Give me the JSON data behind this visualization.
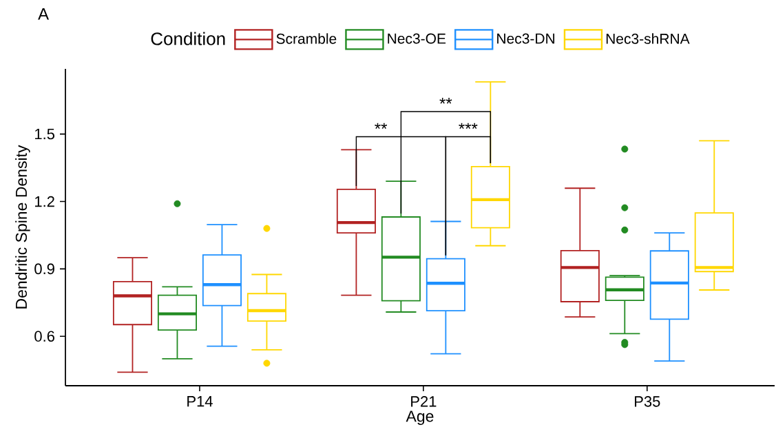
{
  "chart_data": {
    "type": "box",
    "xlabel": "Age",
    "ylabel": "Dendritic Spine Density",
    "legend_title": "Condition",
    "legend": "top",
    "categories": [
      "P14",
      "P21",
      "P35"
    ],
    "ylim": [
      0.38,
      1.79
    ],
    "yticks": [
      0.6,
      0.9,
      1.2,
      1.5
    ],
    "annotations": [
      "A",
      "**",
      "**",
      "***"
    ],
    "series": [
      {
        "name": "Scramble",
        "color": "#b22222",
        "boxes": [
          {
            "low": 0.44,
            "q1": 0.652,
            "median": 0.78,
            "q3": 0.843,
            "high": 0.95
          },
          {
            "low": 0.783,
            "q1": 1.06,
            "median": 1.106,
            "q3": 1.254,
            "high": 1.43
          },
          {
            "low": 0.686,
            "q1": 0.754,
            "median": 0.906,
            "q3": 0.981,
            "high": 1.259
          }
        ]
      },
      {
        "name": "Nec3-OE",
        "color": "#228b22",
        "boxes": [
          {
            "low": 0.5,
            "q1": 0.628,
            "median": 0.7,
            "q3": 0.783,
            "high": 0.82,
            "outliers": [
              1.19
            ]
          },
          {
            "low": 0.708,
            "q1": 0.758,
            "median": 0.952,
            "q3": 1.131,
            "high": 1.29
          },
          {
            "low": 0.612,
            "q1": 0.76,
            "median": 0.807,
            "q3": 0.863,
            "high": 0.87,
            "outliers": [
              1.433,
              1.172,
              1.073,
              0.573,
              0.563
            ]
          }
        ]
      },
      {
        "name": "Nec3-DN",
        "color": "#1e90ff",
        "boxes": [
          {
            "low": 0.556,
            "q1": 0.737,
            "median": 0.83,
            "q3": 0.962,
            "high": 1.097
          },
          {
            "low": 0.522,
            "q1": 0.714,
            "median": 0.836,
            "q3": 0.945,
            "high": 1.111
          },
          {
            "low": 0.49,
            "q1": 0.676,
            "median": 0.837,
            "q3": 0.98,
            "high": 1.06
          }
        ]
      },
      {
        "name": "Nec3-shRNA",
        "color": "#ffd700",
        "boxes": [
          {
            "low": 0.54,
            "q1": 0.668,
            "median": 0.714,
            "q3": 0.79,
            "high": 0.875,
            "outliers": [
              0.48,
              1.08
            ]
          },
          {
            "low": 1.003,
            "q1": 1.083,
            "median": 1.208,
            "q3": 1.355,
            "high": 1.732
          },
          {
            "low": 0.806,
            "q1": 0.888,
            "median": 0.906,
            "q3": 1.149,
            "high": 1.47
          }
        ]
      }
    ]
  }
}
